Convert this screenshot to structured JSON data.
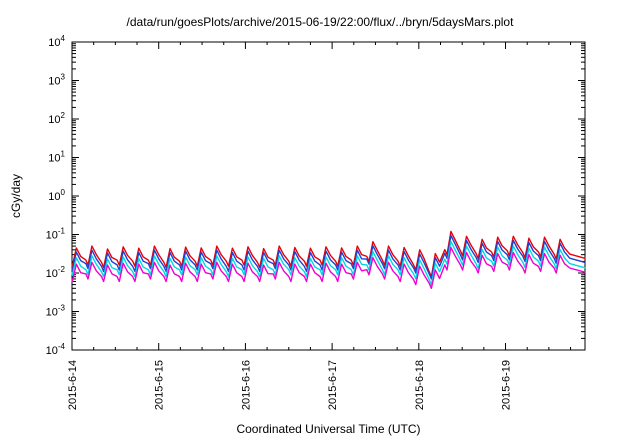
{
  "chart_data": {
    "type": "line",
    "title": "/data/run/goesPlots/archive/2015-06-19/22:00/flux/../bryn/5daysMars.plot",
    "xlabel": "Coordinated Universal Time (UTC)",
    "ylabel": "cGy/day",
    "x_ticks": [
      "2015-6-14",
      "2015-6-15",
      "2015-6-16",
      "2015-6-17",
      "2015-6-18",
      "2015-6-19"
    ],
    "x_range_days": [
      0,
      5.9167
    ],
    "ylim_exp": [
      -4,
      4
    ],
    "grid": false,
    "legend": "none",
    "spike_times": [
      0.05,
      0.23,
      0.41,
      0.59,
      0.77,
      0.95,
      1.13,
      1.31,
      1.49,
      1.67,
      1.85,
      2.03,
      2.21,
      2.39,
      2.57,
      2.75,
      2.93,
      3.11,
      3.29,
      3.47,
      3.65,
      3.83,
      4.01,
      4.19,
      4.37,
      4.55,
      4.73,
      4.91,
      5.09,
      5.27,
      5.45,
      5.63
    ],
    "series": [
      {
        "name": "red",
        "color": "#e8000a",
        "peaks": [
          0.045,
          0.05,
          0.042,
          0.048,
          0.044,
          0.05,
          0.043,
          0.047,
          0.045,
          0.05,
          0.044,
          0.048,
          0.043,
          0.05,
          0.046,
          0.044,
          0.048,
          0.045,
          0.05,
          0.065,
          0.05,
          0.046,
          0.04,
          0.032,
          0.12,
          0.09,
          0.075,
          0.085,
          0.09,
          0.08,
          0.085,
          0.075
        ],
        "troughs": [
          0.015,
          0.016,
          0.014,
          0.016,
          0.015,
          0.016,
          0.014,
          0.015,
          0.015,
          0.016,
          0.015,
          0.016,
          0.014,
          0.016,
          0.015,
          0.015,
          0.016,
          0.015,
          0.016,
          0.02,
          0.016,
          0.015,
          0.012,
          0.008,
          0.03,
          0.028,
          0.024,
          0.026,
          0.028,
          0.025,
          0.026,
          0.023
        ]
      },
      {
        "name": "blue",
        "color": "#2040d0",
        "peaks": [
          0.035,
          0.039,
          0.033,
          0.037,
          0.034,
          0.039,
          0.034,
          0.037,
          0.035,
          0.039,
          0.034,
          0.037,
          0.034,
          0.039,
          0.036,
          0.034,
          0.037,
          0.035,
          0.039,
          0.051,
          0.039,
          0.036,
          0.031,
          0.025,
          0.094,
          0.07,
          0.059,
          0.066,
          0.07,
          0.062,
          0.066,
          0.059
        ],
        "troughs": [
          0.012,
          0.013,
          0.011,
          0.012,
          0.011,
          0.013,
          0.011,
          0.012,
          0.012,
          0.013,
          0.011,
          0.012,
          0.011,
          0.013,
          0.012,
          0.011,
          0.012,
          0.012,
          0.013,
          0.017,
          0.013,
          0.012,
          0.01,
          0.007,
          0.024,
          0.022,
          0.019,
          0.021,
          0.022,
          0.02,
          0.021,
          0.018
        ]
      },
      {
        "name": "cyan",
        "color": "#00d8e8",
        "peaks": [
          0.025,
          0.028,
          0.023,
          0.026,
          0.024,
          0.028,
          0.024,
          0.026,
          0.025,
          0.028,
          0.024,
          0.026,
          0.024,
          0.028,
          0.025,
          0.024,
          0.026,
          0.025,
          0.028,
          0.036,
          0.028,
          0.025,
          0.022,
          0.018,
          0.066,
          0.05,
          0.041,
          0.047,
          0.05,
          0.044,
          0.047,
          0.041
        ],
        "troughs": [
          0.009,
          0.009,
          0.008,
          0.009,
          0.008,
          0.009,
          0.008,
          0.009,
          0.009,
          0.009,
          0.008,
          0.009,
          0.008,
          0.009,
          0.009,
          0.008,
          0.009,
          0.009,
          0.009,
          0.012,
          0.009,
          0.009,
          0.007,
          0.005,
          0.017,
          0.016,
          0.013,
          0.015,
          0.016,
          0.014,
          0.015,
          0.013
        ]
      },
      {
        "name": "magenta",
        "color": "#f000d0",
        "peaks": [
          0.017,
          0.019,
          0.016,
          0.018,
          0.017,
          0.019,
          0.016,
          0.018,
          0.017,
          0.019,
          0.017,
          0.018,
          0.016,
          0.019,
          0.017,
          0.017,
          0.018,
          0.017,
          0.019,
          0.025,
          0.019,
          0.017,
          0.015,
          0.012,
          0.046,
          0.034,
          0.029,
          0.032,
          0.034,
          0.03,
          0.032,
          0.029
        ],
        "troughs": [
          0.006,
          0.007,
          0.006,
          0.006,
          0.006,
          0.007,
          0.006,
          0.006,
          0.006,
          0.007,
          0.006,
          0.006,
          0.006,
          0.007,
          0.006,
          0.006,
          0.006,
          0.006,
          0.007,
          0.009,
          0.007,
          0.006,
          0.005,
          0.004,
          0.012,
          0.012,
          0.01,
          0.011,
          0.012,
          0.01,
          0.011,
          0.01
        ]
      }
    ]
  }
}
